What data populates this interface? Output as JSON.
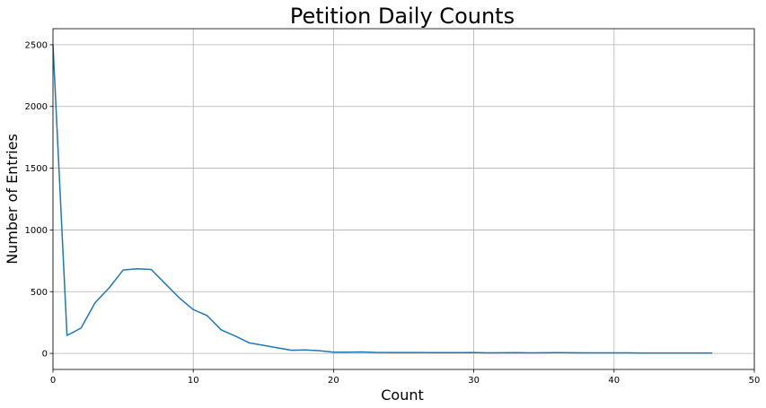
{
  "chart_data": {
    "type": "line",
    "title": "Petition Daily Counts",
    "xlabel": "Count",
    "ylabel": "Number of Entries",
    "xlim": [
      0,
      50
    ],
    "ylim": [
      -130,
      2630
    ],
    "xticks": [
      0,
      10,
      20,
      30,
      40,
      50
    ],
    "yticks": [
      0,
      500,
      1000,
      1500,
      2000,
      2500
    ],
    "grid": true,
    "series_color": "#1f77b4",
    "series": [
      {
        "x": [
          0,
          1,
          2,
          3,
          4,
          5,
          6,
          7,
          8,
          9,
          10,
          11,
          12,
          13,
          14,
          15,
          16,
          17,
          18,
          19,
          20,
          21,
          22,
          23,
          24,
          25,
          26,
          27,
          28,
          29,
          30,
          31,
          32,
          33,
          34,
          35,
          36,
          37,
          38,
          39,
          40,
          41,
          42,
          43,
          44,
          45,
          46,
          47
        ],
        "values": [
          2500,
          145,
          205,
          410,
          530,
          675,
          685,
          680,
          565,
          450,
          355,
          305,
          190,
          140,
          85,
          65,
          45,
          25,
          28,
          22,
          10,
          10,
          12,
          8,
          7,
          7,
          7,
          6,
          6,
          6,
          7,
          4,
          5,
          6,
          4,
          5,
          6,
          5,
          4,
          4,
          4,
          4,
          3,
          3,
          3,
          3,
          3,
          3
        ]
      }
    ]
  }
}
